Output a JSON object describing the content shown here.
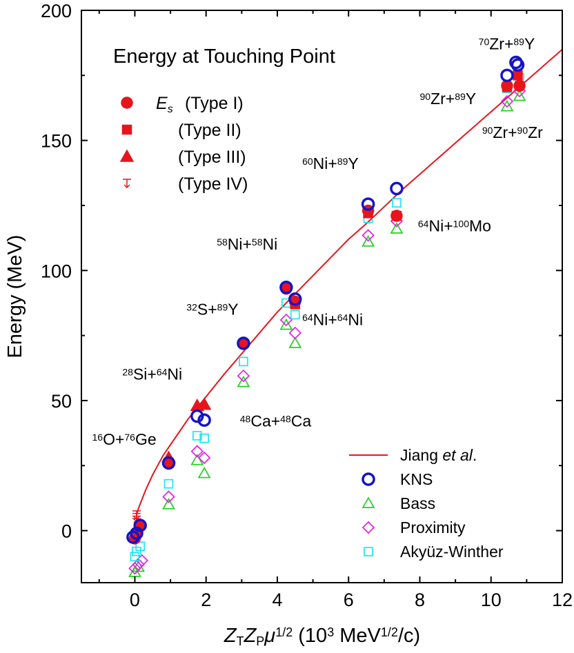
{
  "chart_data": {
    "type": "scatter",
    "title": "Energy at Touching Point",
    "xlabel": {
      "parts": [
        {
          "t": "Z",
          "style": "italic"
        },
        {
          "t": "T",
          "style": "sub"
        },
        {
          "t": "Z",
          "style": "italic"
        },
        {
          "t": "P",
          "style": "sub"
        },
        {
          "t": "μ",
          "style": "italic"
        },
        {
          "t": "1/2",
          "style": "sup"
        },
        {
          "t": " (10",
          "style": "normal"
        },
        {
          "t": "3",
          "style": "sup"
        },
        {
          "t": " MeV",
          "style": "normal"
        },
        {
          "t": "1/2",
          "style": "sup"
        },
        {
          "t": "/c)",
          "style": "normal"
        }
      ]
    },
    "ylabel": "Energy (MeV)",
    "xlim": [
      -1.5,
      12
    ],
    "ylim": [
      -20,
      200
    ],
    "xticks": [
      0,
      2,
      4,
      6,
      8,
      10,
      12
    ],
    "yticks": [
      0,
      50,
      100,
      150,
      200
    ],
    "grid": false,
    "colors": {
      "red": "#e8141c",
      "blue": "#1414c8",
      "green": "#1ed21e",
      "magenta": "#e61ee6",
      "cyan": "#1ee6f0"
    },
    "type_legend": [
      {
        "marker": "circle",
        "label": "(Type I)",
        "prefix": "E",
        "prefix_sub": "s"
      },
      {
        "marker": "square",
        "label": "(Type II)"
      },
      {
        "marker": "triangle",
        "label": "(Type III)"
      },
      {
        "marker": "type4",
        "label": "(Type IV)"
      }
    ],
    "legend": [
      {
        "key": "jiang",
        "label_parts": [
          {
            "t": "Jiang ",
            "style": "normal"
          },
          {
            "t": "et al",
            "style": "italic"
          },
          {
            "t": ".",
            "style": "normal"
          }
        ]
      },
      {
        "key": "kns",
        "label_parts": [
          {
            "t": "KNS",
            "style": "normal"
          }
        ]
      },
      {
        "key": "bass",
        "label_parts": [
          {
            "t": "Bass",
            "style": "normal"
          }
        ]
      },
      {
        "key": "proximity",
        "label_parts": [
          {
            "t": "Proximity",
            "style": "normal"
          }
        ]
      },
      {
        "key": "akyuz",
        "label_parts": [
          {
            "t": "Akyüz-Winther",
            "style": "normal"
          }
        ]
      }
    ],
    "curve": {
      "name": "Jiang et al.",
      "x": [
        0.05,
        0.1,
        0.2,
        0.3,
        0.4,
        0.5,
        0.6,
        0.8,
        1.0,
        1.2,
        1.5,
        2.0,
        2.5,
        3.0,
        3.5,
        4.0,
        4.5,
        5.0,
        5.5,
        6.0,
        6.5,
        7.0,
        7.5,
        8.0,
        8.5,
        9.0,
        9.5,
        10.0,
        10.5,
        11.0,
        11.5,
        12.0
      ],
      "y": [
        6,
        8.5,
        12,
        15.5,
        18.5,
        21.5,
        24,
        29,
        33,
        37,
        43,
        51.5,
        60,
        68,
        76,
        84,
        91,
        98,
        105,
        112,
        118,
        124.5,
        131,
        137,
        143,
        149,
        155,
        161,
        167,
        173,
        179,
        185
      ]
    },
    "series": [
      {
        "key": "typeI",
        "marker": "circle_filled",
        "points": [
          [
            0.0,
            -3
          ],
          [
            0.05,
            -1
          ],
          [
            0.15,
            2
          ],
          [
            0.95,
            26.5
          ],
          [
            3.05,
            72
          ],
          [
            4.25,
            93
          ],
          [
            4.5,
            88
          ],
          [
            6.55,
            123
          ],
          [
            7.35,
            121
          ],
          [
            10.45,
            171
          ],
          [
            10.8,
            171
          ]
        ]
      },
      {
        "key": "typeII",
        "marker": "square_filled",
        "points": [
          [
            4.5,
            87
          ],
          [
            6.55,
            122
          ],
          [
            7.35,
            121
          ],
          [
            10.45,
            170.5
          ],
          [
            10.75,
            175
          ]
        ]
      },
      {
        "key": "typeIII",
        "marker": "triangle_filled",
        "points": [
          [
            0.95,
            28
          ],
          [
            1.75,
            48
          ],
          [
            1.95,
            48.5
          ]
        ]
      },
      {
        "key": "typeIV",
        "marker": "type4",
        "points": [
          [
            0.05,
            6
          ],
          [
            0.05,
            5
          ],
          [
            0.05,
            4
          ],
          [
            0.05,
            3
          ]
        ]
      },
      {
        "key": "kns",
        "marker": "circle_open",
        "points": [
          [
            -0.05,
            -2.5
          ],
          [
            0.05,
            -1
          ],
          [
            0.15,
            2
          ],
          [
            0.95,
            26
          ],
          [
            1.75,
            44
          ],
          [
            1.95,
            42.5
          ],
          [
            3.05,
            72
          ],
          [
            4.25,
            93.5
          ],
          [
            4.5,
            89
          ],
          [
            6.55,
            125.5
          ],
          [
            7.35,
            131.5
          ],
          [
            10.45,
            175
          ],
          [
            10.7,
            180
          ],
          [
            10.75,
            179
          ]
        ]
      },
      {
        "key": "bass",
        "marker": "triangle_open",
        "points": [
          [
            0.0,
            -16
          ],
          [
            0.1,
            -14
          ],
          [
            0.95,
            10
          ],
          [
            1.75,
            27
          ],
          [
            1.95,
            22
          ],
          [
            3.05,
            57
          ],
          [
            4.25,
            79
          ],
          [
            4.5,
            72
          ],
          [
            6.55,
            111
          ],
          [
            7.35,
            116
          ],
          [
            10.45,
            163
          ],
          [
            10.8,
            167
          ]
        ]
      },
      {
        "key": "proximity",
        "marker": "diamond_open",
        "points": [
          [
            0.0,
            -14.5
          ],
          [
            0.1,
            -13
          ],
          [
            0.2,
            -11.5
          ],
          [
            0.95,
            13
          ],
          [
            1.75,
            30.5
          ],
          [
            1.95,
            28
          ],
          [
            3.05,
            59.5
          ],
          [
            4.25,
            81
          ],
          [
            4.5,
            76
          ],
          [
            6.55,
            113.5
          ],
          [
            7.35,
            119
          ],
          [
            10.45,
            165
          ],
          [
            10.8,
            169
          ]
        ]
      },
      {
        "key": "akyuz",
        "marker": "square_open",
        "points": [
          [
            0.0,
            -10
          ],
          [
            0.05,
            -8
          ],
          [
            0.15,
            -6
          ],
          [
            0.95,
            18
          ],
          [
            1.75,
            36.5
          ],
          [
            1.95,
            35.5
          ],
          [
            3.05,
            65
          ],
          [
            4.25,
            87.5
          ],
          [
            4.5,
            83
          ],
          [
            6.55,
            120
          ],
          [
            7.35,
            126
          ],
          [
            10.45,
            170
          ],
          [
            10.8,
            174
          ]
        ]
      }
    ],
    "annotations": [
      {
        "x": -1.2,
        "y": 33,
        "a": "16",
        "b": "O+",
        "c": "76",
        "d": "Ge"
      },
      {
        "x": -0.35,
        "y": 58,
        "a": "28",
        "b": "Si+",
        "c": "64",
        "d": "Ni"
      },
      {
        "x": 1.45,
        "y": 83,
        "a": "32",
        "b": "S+",
        "c": "89",
        "d": "Y"
      },
      {
        "x": 2.3,
        "y": 108,
        "a": "58",
        "b": "Ni+",
        "c": "58",
        "d": "Ni"
      },
      {
        "x": 4.7,
        "y": 79,
        "a": "64",
        "b": "Ni+",
        "c": "64",
        "d": "Ni"
      },
      {
        "x": 2.95,
        "y": 40,
        "a": "48",
        "b": "Ca+",
        "c": "48",
        "d": "Ca"
      },
      {
        "x": 4.7,
        "y": 139,
        "a": "60",
        "b": "Ni+",
        "c": "89",
        "d": "Y"
      },
      {
        "x": 7.95,
        "y": 115,
        "a": "64",
        "b": "Ni+",
        "c": "100",
        "d": "Mo"
      },
      {
        "x": 8.0,
        "y": 164,
        "a": "90",
        "b": "Zr+",
        "c": "89",
        "d": "Y"
      },
      {
        "x": 9.65,
        "y": 185,
        "a": "70",
        "b": "Zr+",
        "c": "89",
        "d": "Y"
      },
      {
        "x": 9.75,
        "y": 151,
        "a": "90",
        "b": "Zr+",
        "c": "90",
        "d": "Zr"
      }
    ]
  }
}
